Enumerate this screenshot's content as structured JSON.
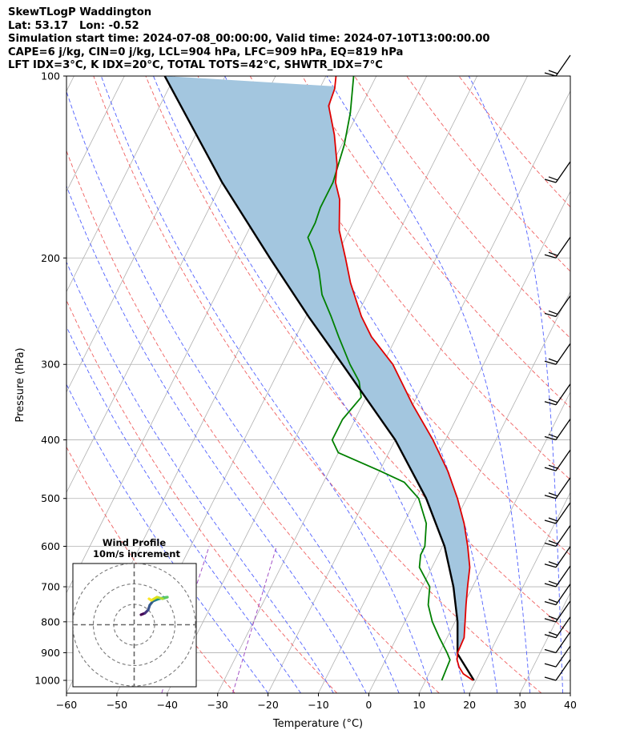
{
  "header": {
    "title": "SkewTLogP Waddington",
    "location": "Lat: 53.17   Lon: -0.52",
    "times": "Simulation start time: 2024-07-08_00:00:00, Valid time: 2024-07-10T13:00:00.00",
    "params1": "CAPE=6 j/kg, CIN=0 j/kg, LCL=904 hPa, LFC=909 hPa, EQ=819 hPa",
    "params2": "LFT IDX=3°C, K IDX=20°C, TOTAL TOTS=42°C, SHWTR_IDX=7°C"
  },
  "chart_data": {
    "type": "line",
    "subtype": "skew-t log-p",
    "xlabel": "Temperature (°C)",
    "ylabel": "Pressure (hPa)",
    "xlim": [
      -60,
      40
    ],
    "ylim": [
      1050,
      100
    ],
    "y_scale": "log",
    "x_ticks": [
      -60,
      -50,
      -40,
      -30,
      -20,
      -10,
      0,
      10,
      20,
      30,
      40
    ],
    "y_ticks": [
      100,
      200,
      300,
      400,
      500,
      600,
      700,
      800,
      900,
      1000
    ],
    "grid": true,
    "colors": {
      "temperature": "#e00000",
      "dewpoint": "#008000",
      "parcel": "#000000",
      "cape_fill": "#a3c6df",
      "dry_adiabats": "#f06060",
      "moist_adiabats": "#5060ff",
      "mixing_ratio": "#9a40c0",
      "isotherms": "#b0b0b0"
    },
    "series": [
      {
        "key": "temperature",
        "points": [
          [
            1000,
            19.4
          ],
          [
            975,
            16.8
          ],
          [
            950,
            15.3
          ],
          [
            925,
            14.2
          ],
          [
            900,
            13.6
          ],
          [
            850,
            13.4
          ],
          [
            800,
            12.0
          ],
          [
            750,
            10.5
          ],
          [
            700,
            9.0
          ],
          [
            650,
            7.5
          ],
          [
            600,
            5.0
          ],
          [
            550,
            2.0
          ],
          [
            500,
            -1.8
          ],
          [
            450,
            -6.5
          ],
          [
            400,
            -12.5
          ],
          [
            350,
            -20.0
          ],
          [
            300,
            -28.0
          ],
          [
            270,
            -35.0
          ],
          [
            250,
            -39.0
          ],
          [
            220,
            -44.5
          ],
          [
            200,
            -48.0
          ],
          [
            180,
            -52.0
          ],
          [
            160,
            -55.0
          ],
          [
            150,
            -57.5
          ],
          [
            140,
            -59.0
          ],
          [
            125,
            -62.5
          ],
          [
            112,
            -66.5
          ],
          [
            105,
            -67.0
          ],
          [
            100,
            -68.0
          ]
        ]
      },
      {
        "key": "dewpoint",
        "points": [
          [
            1000,
            13.2
          ],
          [
            960,
            13.0
          ],
          [
            925,
            12.8
          ],
          [
            900,
            11.5
          ],
          [
            850,
            8.5
          ],
          [
            800,
            5.5
          ],
          [
            750,
            3.0
          ],
          [
            700,
            1.5
          ],
          [
            650,
            -2.5
          ],
          [
            620,
            -3.5
          ],
          [
            600,
            -3.5
          ],
          [
            550,
            -5.5
          ],
          [
            500,
            -9.5
          ],
          [
            470,
            -14.0
          ],
          [
            450,
            -20.0
          ],
          [
            420,
            -30.0
          ],
          [
            400,
            -32.5
          ],
          [
            370,
            -32.5
          ],
          [
            340,
            -31.0
          ],
          [
            320,
            -33.0
          ],
          [
            300,
            -36.5
          ],
          [
            270,
            -41.5
          ],
          [
            250,
            -45.0
          ],
          [
            230,
            -49.0
          ],
          [
            210,
            -52.0
          ],
          [
            195,
            -55.0
          ],
          [
            185,
            -57.5
          ],
          [
            175,
            -57.5
          ],
          [
            165,
            -58.0
          ],
          [
            150,
            -58.0
          ],
          [
            130,
            -59.5
          ],
          [
            115,
            -61.5
          ],
          [
            100,
            -64.5
          ]
        ]
      },
      {
        "key": "parcel",
        "points": [
          [
            1000,
            19.6
          ],
          [
            904,
            13.7
          ],
          [
            800,
            10.5
          ],
          [
            700,
            6.2
          ],
          [
            600,
            0.4
          ],
          [
            500,
            -8.0
          ],
          [
            400,
            -20.0
          ],
          [
            300,
            -38.0
          ],
          [
            250,
            -49.5
          ],
          [
            200,
            -63.0
          ],
          [
            150,
            -80.0
          ],
          [
            100,
            -102.0
          ]
        ]
      }
    ],
    "inset": {
      "title": "Wind Profile",
      "subtitle": "10m/s increment",
      "rings": [
        10,
        20,
        30
      ]
    }
  }
}
